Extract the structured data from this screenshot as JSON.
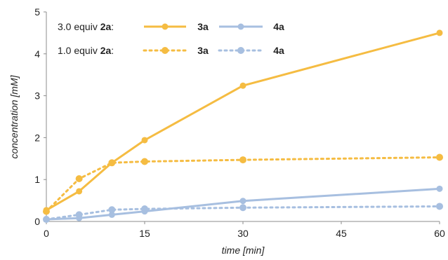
{
  "chart_data": {
    "type": "line",
    "xlabel": "time [min]",
    "ylabel": "concentration [mM]",
    "xlim": [
      0,
      60
    ],
    "ylim": [
      0,
      5
    ],
    "x_ticks": [
      "0",
      "15",
      "30",
      "45",
      "60"
    ],
    "y_ticks": [
      "0",
      "1",
      "2",
      "3",
      "4",
      "5"
    ],
    "grid": false,
    "legend": {
      "placement": "top-left",
      "rows": [
        {
          "prefix": "3.0 equiv ",
          "reagent": "2a",
          "suffix": ":"
        },
        {
          "prefix": "1.0 equiv ",
          "reagent": "2a",
          "suffix": ":"
        }
      ]
    },
    "series": [
      {
        "name": "3a",
        "condition": "3.0 equiv 2a",
        "color": "#F5BC42",
        "line": "solid",
        "x": [
          0,
          5,
          10,
          15,
          30,
          60
        ],
        "y": [
          0.27,
          0.72,
          1.4,
          1.94,
          3.24,
          4.5
        ]
      },
      {
        "name": "4a",
        "condition": "3.0 equiv 2a",
        "color": "#A7BFE0",
        "line": "solid",
        "x": [
          0,
          5,
          10,
          15,
          30,
          60
        ],
        "y": [
          0.05,
          0.08,
          0.16,
          0.24,
          0.49,
          0.78
        ]
      },
      {
        "name": "3a",
        "condition": "1.0 equiv 2a",
        "color": "#F5BC42",
        "line": "dotted",
        "x": [
          0,
          5,
          10,
          15,
          30,
          60
        ],
        "y": [
          0.24,
          1.02,
          1.4,
          1.43,
          1.47,
          1.53
        ]
      },
      {
        "name": "4a",
        "condition": "1.0 equiv 2a",
        "color": "#A7BFE0",
        "line": "dotted",
        "x": [
          0,
          5,
          10,
          15,
          30,
          60
        ],
        "y": [
          0.05,
          0.16,
          0.28,
          0.3,
          0.33,
          0.36
        ]
      }
    ]
  }
}
